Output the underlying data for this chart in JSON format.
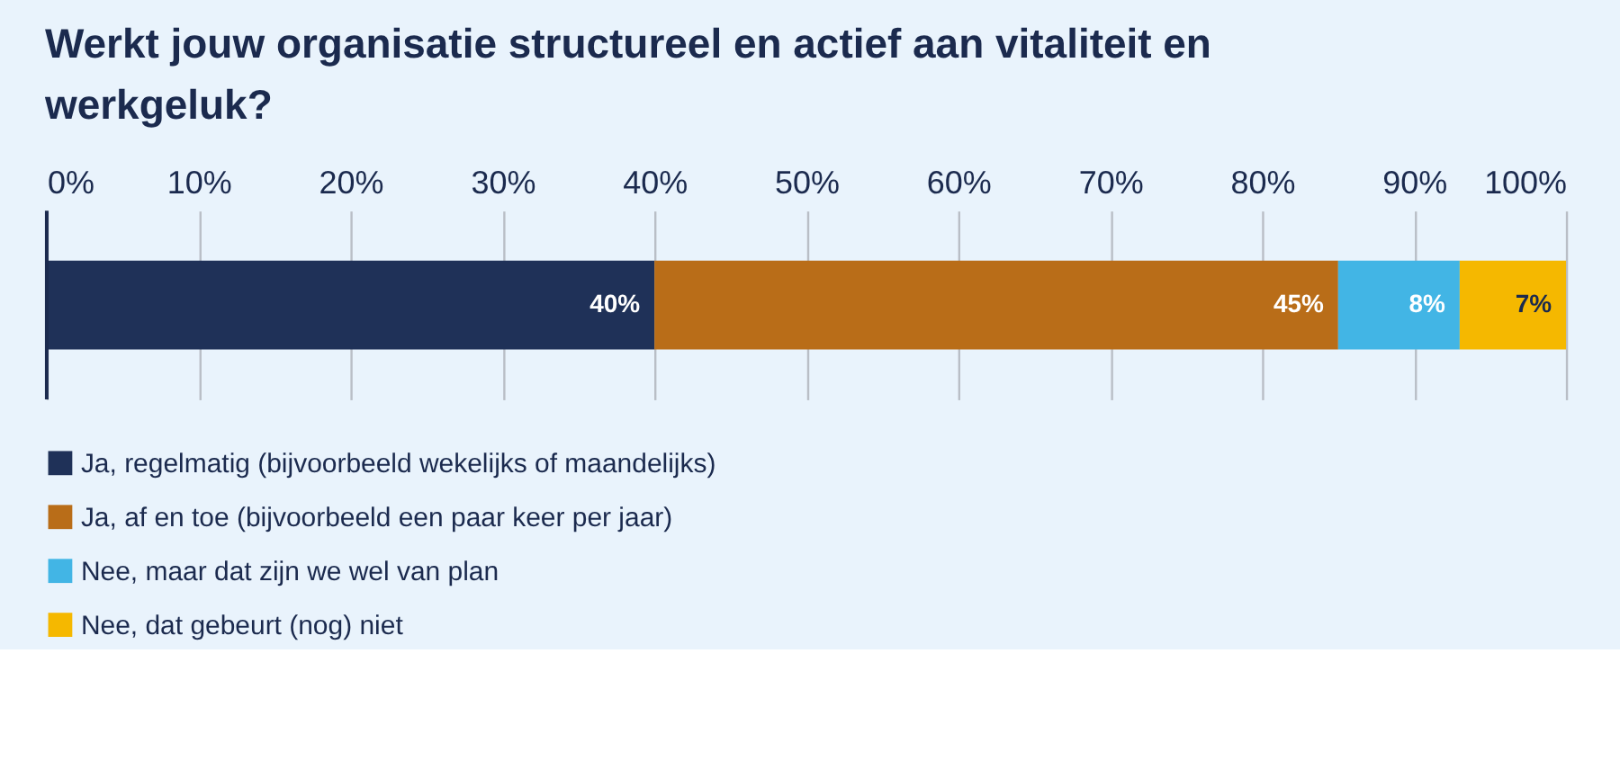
{
  "chart_data": {
    "type": "bar",
    "orientation": "horizontal",
    "stacked": true,
    "title": "Werkt jouw organisatie structureel en actief aan vitaliteit en werkgeluk?",
    "categories": [
      null
    ],
    "series": [
      {
        "name": "Ja, regelmatig (bijvoorbeeld wekelijks of maandelijks)",
        "color": "#1f3158",
        "values": [
          40
        ],
        "value_labels": [
          "40%"
        ]
      },
      {
        "name": "Ja, af en toe (bijvoorbeeld een paar keer per jaar)",
        "color": "#b96d18",
        "values": [
          45
        ],
        "value_labels": [
          "45%"
        ]
      },
      {
        "name": "Nee, maar dat zijn we wel van plan",
        "color": "#42b5e5",
        "values": [
          8
        ],
        "value_labels": [
          "8%"
        ]
      },
      {
        "name": "Nee, dat gebeurt (nog) niet",
        "color": "#f5b800",
        "values": [
          7
        ],
        "value_labels": [
          "7%"
        ]
      }
    ],
    "xlim": [
      0,
      100
    ],
    "xticks": [
      {
        "value": 0,
        "label": "0%"
      },
      {
        "value": 10,
        "label": "10%"
      },
      {
        "value": 20,
        "label": "20%"
      },
      {
        "value": 30,
        "label": "30%"
      },
      {
        "value": 40,
        "label": "40%"
      },
      {
        "value": 50,
        "label": "50%"
      },
      {
        "value": 60,
        "label": "60%"
      },
      {
        "value": 70,
        "label": "70%"
      },
      {
        "value": 80,
        "label": "80%"
      },
      {
        "value": 90,
        "label": "90%"
      },
      {
        "value": 100,
        "label": "100%"
      }
    ],
    "grid": "x",
    "legend": "bottom"
  }
}
